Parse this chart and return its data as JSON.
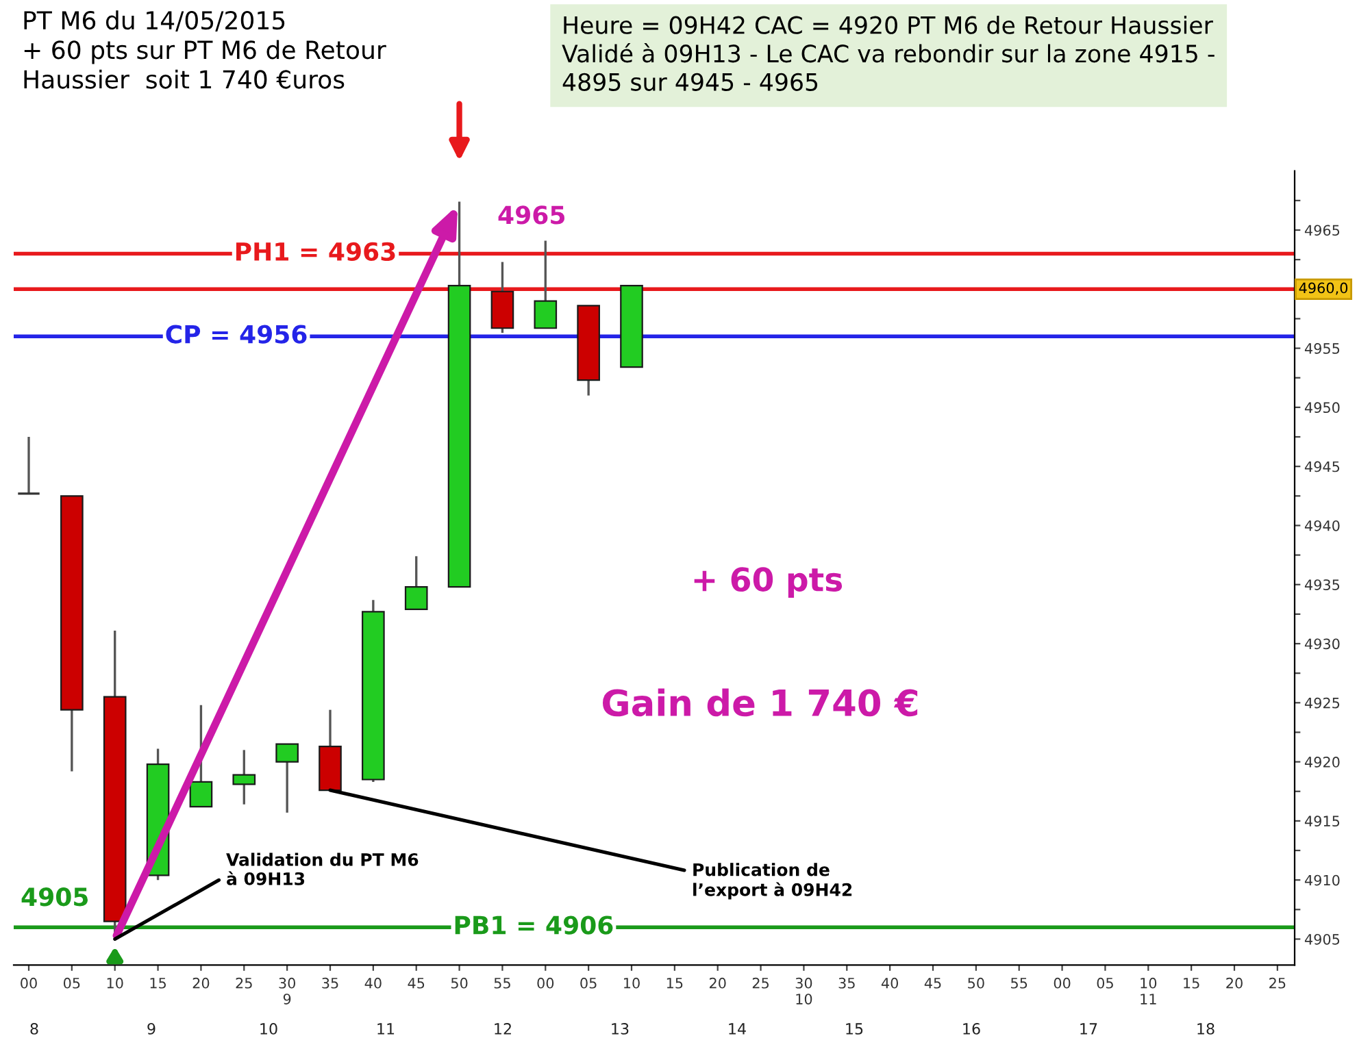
{
  "chart_data": {
    "type": "candlestick",
    "title": "PT M6 du 14/05/2015\n+ 60 pts sur PT M6 de Retour\nHaussier  soit 1 740 €uros",
    "subtitle": "Heure = 09H42 CAC = 4920 PT M6 de Retour Haussier\nValidé à 09H13 - Le CAC va rebondir sur la zone 4915 -\n4895 sur 4945 - 4965",
    "categories": [
      "00",
      "05",
      "10",
      "15",
      "20",
      "25",
      "30\n9",
      "35",
      "40",
      "45",
      "50",
      "55",
      "00",
      "05",
      "10",
      "15",
      "20",
      "25",
      "30\n10",
      "35",
      "40",
      "45",
      "50",
      "55",
      "00",
      "05",
      "10\n11",
      "15",
      "20",
      "25"
    ],
    "ohlc": [
      [
        4942.7,
        4947.5,
        4942.7,
        4942.7
      ],
      [
        4942.5,
        4942.5,
        4919.2,
        4924.4
      ],
      [
        4925.5,
        4931.1,
        4905.0,
        4906.5
      ],
      [
        4910.4,
        4921.1,
        4910.0,
        4919.8
      ],
      [
        4916.2,
        4924.8,
        4916.2,
        4918.3
      ],
      [
        4918.1,
        4921.0,
        4916.4,
        4918.9
      ],
      [
        4920.0,
        4921.5,
        4915.7,
        4921.5
      ],
      [
        4921.3,
        4924.4,
        4917.6,
        4917.6
      ],
      [
        4918.5,
        4933.7,
        4918.3,
        4932.7
      ],
      [
        4932.9,
        4937.4,
        4932.9,
        4934.8
      ],
      [
        4934.8,
        4967.4,
        4934.8,
        4960.3
      ],
      [
        4959.8,
        4962.3,
        4956.3,
        4956.7
      ],
      [
        4956.7,
        4964.1,
        4956.7,
        4959.0
      ],
      [
        4958.6,
        4958.6,
        4951.0,
        4952.3
      ],
      [
        4953.4,
        4960.3,
        4953.4,
        4960.3
      ],
      null,
      null,
      null,
      null,
      null,
      null,
      null,
      null,
      null,
      null,
      null,
      null,
      null,
      null,
      null
    ],
    "colors": [
      "#333333",
      "#cc0000",
      "#cc0000",
      "#22cc22",
      "#22cc22",
      "#22cc22",
      "#22cc22",
      "#cc0000",
      "#22cc22",
      "#22cc22",
      "#22cc22",
      "#cc0000",
      "#22cc22",
      "#cc0000",
      "#22cc22",
      null,
      null,
      null,
      null,
      null,
      null,
      null,
      null,
      null,
      null,
      null,
      null,
      null,
      null,
      null
    ],
    "ylim": [
      4902.8,
      4970
    ],
    "yticks": [
      4905,
      {
        "value": 4907.5,
        "label": null
      },
      4910,
      {
        "value": 4912.5,
        "label": null
      },
      4915,
      {
        "value": 4917.5,
        "label": null
      },
      4920,
      {
        "value": 4922.5,
        "label": null
      },
      4925,
      {
        "value": 4927.5,
        "label": null
      },
      4930,
      {
        "value": 4932.5,
        "label": null
      },
      4935,
      {
        "value": 4937.5,
        "label": null
      },
      4940,
      {
        "value": 4942.5,
        "label": null
      },
      4945,
      {
        "value": 4947.5,
        "label": null
      },
      4950,
      {
        "value": 4952.5,
        "label": null
      },
      4955,
      {
        "value": 4957.5,
        "label": null
      },
      {
        "value": 4960,
        "label": null
      },
      {
        "value": 4962.5,
        "label": null
      },
      4965,
      {
        "value": 4967.5,
        "label": null
      }
    ],
    "ref_lines": [
      {
        "axis": "y",
        "value": 4963,
        "label": "PH1 = 4963",
        "color": "#e8191c"
      },
      {
        "axis": "y",
        "value": 4960,
        "color": "#e8191c"
      },
      {
        "axis": "y",
        "value": 4956,
        "label": "CP = 4956",
        "color": "#2424e8"
      },
      {
        "axis": "y",
        "value": 4906,
        "label": "PB1 = 4906",
        "color": "#1a9a1a"
      }
    ],
    "annotations": [
      "4905",
      "4965",
      {
        "text": "Validation du PT M6\nà 09H13",
        "x": "10",
        "y": 4905.0
      },
      {
        "text": "Publication de\nl’export à 09H42",
        "x": "35",
        "y": 4917.6
      },
      {
        "text": "4960,0",
        "y": 4960
      },
      "+ 60 pts",
      "Gain de 1 740 €",
      "8",
      "9",
      "10",
      "11",
      "12",
      "13",
      "14",
      "15",
      "16",
      "17",
      "18"
    ]
  }
}
